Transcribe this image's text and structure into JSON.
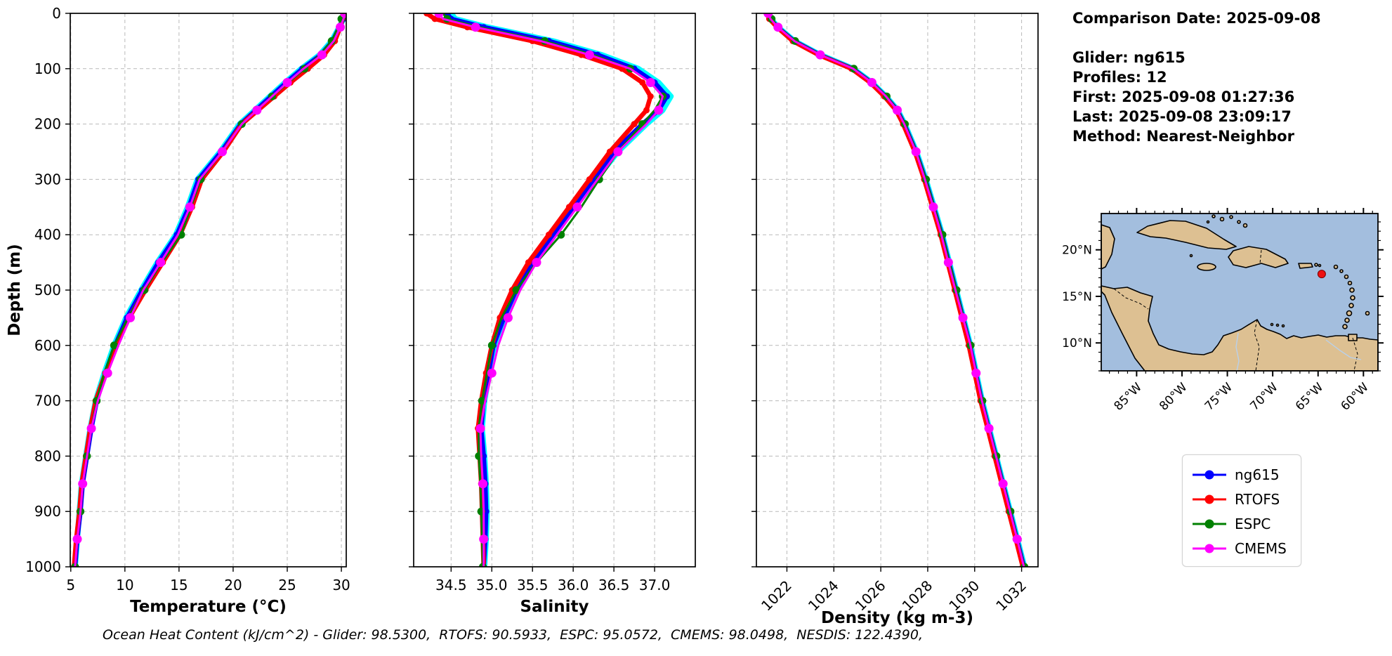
{
  "info_panel": {
    "comparison_date": "Comparison Date: 2025-09-08",
    "glider": "Glider: ng615",
    "profiles": "Profiles: 12",
    "first": "First: 2025-09-08 01:27:36",
    "last": "Last: 2025-09-08 23:09:17",
    "method": "Method: Nearest-Neighbor"
  },
  "footer_text": "Ocean Heat Content (kJ/cm^2) - Glider: 98.5300,  RTOFS: 90.5933,  ESPC: 95.0572,  CMEMS: 98.0498,  NESDIS: 122.4390,",
  "depth_axis": {
    "label": "Depth (m)",
    "ticks": [
      0,
      100,
      200,
      300,
      400,
      500,
      600,
      700,
      800,
      900,
      1000
    ],
    "lim": [
      0,
      1000
    ]
  },
  "legend": {
    "items": [
      {
        "label": "ng615",
        "color": "#0000ff"
      },
      {
        "label": "RTOFS",
        "color": "#ff0000"
      },
      {
        "label": "ESPC",
        "color": "#008000"
      },
      {
        "label": "CMEMS",
        "color": "#ff00ff"
      }
    ]
  },
  "chart_data": [
    {
      "type": "line",
      "xlabel": "Temperature (°C)",
      "ylabel": "Depth (m)",
      "xlim": [
        4.95,
        30.45
      ],
      "ylim": [
        0,
        1000
      ],
      "grid": true,
      "xticks": [
        5,
        10,
        15,
        20,
        25,
        30
      ],
      "xtick_labels": [
        "5",
        "10",
        "15",
        "20",
        "25",
        "30"
      ],
      "depths": [
        0,
        10,
        25,
        50,
        75,
        100,
        125,
        150,
        175,
        200,
        250,
        300,
        350,
        400,
        450,
        500,
        550,
        600,
        650,
        700,
        750,
        800,
        850,
        900,
        950,
        1000
      ],
      "series": [
        {
          "name": "ng615-raw-profiles",
          "color": "#00ffff",
          "line_width": 8,
          "marker_radius": 0,
          "marker_every": 0,
          "marker_offset": 0,
          "in_legend": false,
          "values": [
            30.3,
            30.2,
            29.8,
            29.1,
            28.0,
            26.3,
            24.8,
            23.4,
            22.0,
            20.6,
            18.8,
            16.7,
            15.8,
            14.7,
            13.0,
            11.5,
            10.1,
            9.0,
            8.1,
            7.3,
            6.8,
            6.4,
            6.0,
            5.8,
            5.6,
            5.4
          ]
        },
        {
          "name": "ng615",
          "color": "#0000ff",
          "line_width": 6.5,
          "marker_radius": 4.5,
          "marker_every": 1,
          "marker_offset": 0,
          "in_legend": true,
          "values": [
            30.3,
            30.2,
            29.8,
            29.2,
            28.1,
            26.4,
            24.9,
            23.5,
            22.1,
            20.7,
            18.9,
            16.8,
            15.9,
            14.8,
            13.1,
            11.6,
            10.2,
            9.1,
            8.2,
            7.4,
            6.9,
            6.5,
            6.1,
            5.9,
            5.6,
            5.4
          ]
        },
        {
          "name": "RTOFS",
          "color": "#ff0000",
          "line_width": 6.5,
          "marker_radius": 4.5,
          "marker_every": 1,
          "marker_offset": 0,
          "in_legend": true,
          "values": [
            30.2,
            30.1,
            29.9,
            29.4,
            28.4,
            26.9,
            25.3,
            23.8,
            22.3,
            20.8,
            19.1,
            17.1,
            16.2,
            15.1,
            13.5,
            11.9,
            10.4,
            9.2,
            8.2,
            7.3,
            6.8,
            6.4,
            6.0,
            5.8,
            5.5,
            5.3
          ]
        },
        {
          "name": "ESPC",
          "color": "#008000",
          "line_width": 3,
          "marker_radius": 5.5,
          "marker_every": 2,
          "marker_offset": 1,
          "in_legend": true,
          "values": [
            30.1,
            30.0,
            29.7,
            29.1,
            28.0,
            26.6,
            25.1,
            23.6,
            22.2,
            20.8,
            19.0,
            17.0,
            16.1,
            15.2,
            13.4,
            11.8,
            10.3,
            9.0,
            8.1,
            7.4,
            6.9,
            6.5,
            6.1,
            5.9,
            5.6,
            5.4
          ]
        },
        {
          "name": "CMEMS",
          "color": "#ff00ff",
          "line_width": 3,
          "marker_radius": 6.5,
          "marker_every": 2,
          "marker_offset": 0,
          "in_legend": true,
          "values": [
            30.3,
            30.2,
            29.9,
            29.3,
            28.2,
            26.5,
            25.0,
            23.6,
            22.2,
            20.8,
            19.0,
            16.9,
            16.0,
            14.9,
            13.3,
            11.7,
            10.5,
            9.4,
            8.4,
            7.5,
            6.9,
            6.5,
            6.1,
            5.9,
            5.6,
            5.4
          ]
        }
      ]
    },
    {
      "type": "line",
      "xlabel": "Salinity",
      "ylabel": "Depth (m)",
      "xlim": [
        34.04,
        37.5
      ],
      "ylim": [
        0,
        1000
      ],
      "grid": true,
      "xticks": [
        34.5,
        35.0,
        35.5,
        36.0,
        36.5,
        37.0
      ],
      "xtick_labels": [
        "34.5",
        "35.0",
        "35.5",
        "36.0",
        "36.5",
        "37.0"
      ],
      "depths": [
        0,
        10,
        25,
        50,
        75,
        100,
        125,
        150,
        175,
        200,
        250,
        300,
        350,
        400,
        450,
        500,
        550,
        600,
        650,
        700,
        750,
        800,
        850,
        900,
        950,
        1000
      ],
      "series": [
        {
          "name": "ng615-raw-profiles",
          "color": "#00ffff",
          "line_width": 8,
          "marker_radius": 0,
          "marker_every": 0,
          "marker_offset": 0,
          "in_legend": false,
          "values": [
            34.5,
            34.55,
            34.95,
            35.75,
            36.35,
            36.8,
            37.05,
            37.2,
            37.1,
            36.9,
            36.55,
            36.28,
            36.02,
            35.77,
            35.52,
            35.32,
            35.17,
            35.04,
            34.97,
            34.91,
            34.88,
            34.91,
            34.93,
            34.94,
            34.93,
            34.91
          ]
        },
        {
          "name": "ng615",
          "color": "#0000ff",
          "line_width": 6.5,
          "marker_radius": 4.5,
          "marker_every": 1,
          "marker_offset": 0,
          "in_legend": true,
          "values": [
            34.45,
            34.5,
            34.9,
            35.7,
            36.3,
            36.75,
            37.0,
            37.15,
            37.05,
            36.85,
            36.5,
            36.25,
            36.0,
            35.75,
            35.5,
            35.3,
            35.15,
            35.02,
            34.96,
            34.9,
            34.87,
            34.9,
            34.92,
            34.93,
            34.92,
            34.9
          ]
        },
        {
          "name": "RTOFS",
          "color": "#ff0000",
          "line_width": 6.5,
          "marker_radius": 4.5,
          "marker_every": 1,
          "marker_offset": 0,
          "in_legend": true,
          "values": [
            34.2,
            34.3,
            34.7,
            35.5,
            36.1,
            36.6,
            36.85,
            36.95,
            36.9,
            36.75,
            36.45,
            36.2,
            35.95,
            35.7,
            35.45,
            35.25,
            35.1,
            35.0,
            34.93,
            34.87,
            34.83,
            34.85,
            34.87,
            34.88,
            34.89,
            34.9
          ]
        },
        {
          "name": "ESPC",
          "color": "#008000",
          "line_width": 3,
          "marker_radius": 5.5,
          "marker_every": 2,
          "marker_offset": 1,
          "in_legend": true,
          "values": [
            34.4,
            34.45,
            34.85,
            35.65,
            36.25,
            36.7,
            36.95,
            37.1,
            37.0,
            36.85,
            36.55,
            36.32,
            36.1,
            35.85,
            35.55,
            35.3,
            35.12,
            35.0,
            34.94,
            34.88,
            34.84,
            34.84,
            34.86,
            34.87,
            34.88,
            34.89
          ]
        },
        {
          "name": "CMEMS",
          "color": "#ff00ff",
          "line_width": 3,
          "marker_radius": 6.5,
          "marker_every": 2,
          "marker_offset": 0,
          "in_legend": true,
          "values": [
            34.35,
            34.4,
            34.8,
            35.6,
            36.2,
            36.7,
            36.95,
            37.1,
            37.05,
            36.9,
            36.55,
            36.3,
            36.05,
            35.8,
            35.55,
            35.35,
            35.2,
            35.08,
            35.0,
            34.92,
            34.86,
            34.87,
            34.89,
            34.9,
            34.9,
            34.9
          ]
        }
      ]
    },
    {
      "type": "line",
      "xlabel": "Density (kg m-3)",
      "ylabel": "Depth (m)",
      "xlim": [
        1020.7,
        1032.7
      ],
      "ylim": [
        0,
        1000
      ],
      "grid": true,
      "xticks": [
        1022,
        1024,
        1026,
        1028,
        1030,
        1032
      ],
      "xtick_labels": [
        "1022",
        "1024",
        "1026",
        "1028",
        "1030",
        "1032"
      ],
      "xtick_rotation": -45,
      "depths": [
        0,
        10,
        25,
        50,
        75,
        100,
        125,
        150,
        175,
        200,
        250,
        300,
        350,
        400,
        450,
        500,
        550,
        600,
        650,
        700,
        750,
        800,
        850,
        900,
        950,
        1000
      ],
      "series": [
        {
          "name": "ng615-raw-profiles",
          "color": "#00ffff",
          "line_width": 8,
          "marker_radius": 0,
          "marker_every": 0,
          "marker_offset": 0,
          "in_legend": false,
          "values": [
            1021.22,
            1021.32,
            1021.62,
            1022.32,
            1023.42,
            1024.82,
            1025.62,
            1026.22,
            1026.72,
            1027.02,
            1027.52,
            1027.92,
            1028.27,
            1028.62,
            1028.92,
            1029.22,
            1029.52,
            1029.82,
            1030.07,
            1030.32,
            1030.62,
            1030.92,
            1031.22,
            1031.52,
            1031.82,
            1032.12
          ]
        },
        {
          "name": "ng615",
          "color": "#0000ff",
          "line_width": 6.5,
          "marker_radius": 4.5,
          "marker_every": 1,
          "marker_offset": 0,
          "in_legend": true,
          "values": [
            1021.2,
            1021.3,
            1021.6,
            1022.3,
            1023.4,
            1024.8,
            1025.6,
            1026.2,
            1026.7,
            1027.0,
            1027.5,
            1027.9,
            1028.25,
            1028.6,
            1028.9,
            1029.2,
            1029.5,
            1029.8,
            1030.05,
            1030.3,
            1030.6,
            1030.9,
            1031.2,
            1031.5,
            1031.8,
            1032.1
          ]
        },
        {
          "name": "RTOFS",
          "color": "#ff0000",
          "line_width": 6.5,
          "marker_radius": 4.5,
          "marker_every": 1,
          "marker_offset": 0,
          "in_legend": true,
          "values": [
            1021.15,
            1021.25,
            1021.58,
            1022.25,
            1023.35,
            1024.75,
            1025.55,
            1026.15,
            1026.65,
            1026.95,
            1027.45,
            1027.85,
            1028.2,
            1028.55,
            1028.85,
            1029.15,
            1029.45,
            1029.75,
            1030.0,
            1030.25,
            1030.55,
            1030.85,
            1031.15,
            1031.45,
            1031.75,
            1032.05
          ]
        },
        {
          "name": "ESPC",
          "color": "#008000",
          "line_width": 3,
          "marker_radius": 5.5,
          "marker_every": 2,
          "marker_offset": 1,
          "in_legend": true,
          "values": [
            1021.25,
            1021.35,
            1021.65,
            1022.35,
            1023.45,
            1024.85,
            1025.65,
            1026.25,
            1026.73,
            1027.03,
            1027.53,
            1027.93,
            1028.28,
            1028.63,
            1028.93,
            1029.23,
            1029.53,
            1029.83,
            1030.08,
            1030.33,
            1030.63,
            1030.93,
            1031.23,
            1031.53,
            1031.83,
            1032.12
          ]
        },
        {
          "name": "CMEMS",
          "color": "#ff00ff",
          "line_width": 3,
          "marker_radius": 6.5,
          "marker_every": 2,
          "marker_offset": 0,
          "in_legend": true,
          "values": [
            1021.2,
            1021.3,
            1021.62,
            1022.32,
            1023.42,
            1024.82,
            1025.62,
            1026.22,
            1026.7,
            1027.0,
            1027.5,
            1027.88,
            1028.24,
            1028.58,
            1028.88,
            1029.18,
            1029.5,
            1029.82,
            1030.06,
            1030.31,
            1030.61,
            1030.91,
            1031.21,
            1031.51,
            1031.81,
            1032.1
          ]
        }
      ]
    }
  ],
  "map": {
    "extent": {
      "lon_min": -88.9,
      "lon_max": -58.4,
      "lat_min": 7.0,
      "lat_max": 23.9
    },
    "lat_ticks": [
      {
        "label": "20°N",
        "lat": 20
      },
      {
        "label": "15°N",
        "lat": 15
      },
      {
        "label": "10°N",
        "lat": 10
      }
    ],
    "lon_ticks": [
      {
        "label": "85°W",
        "lon": -85
      },
      {
        "label": "80°W",
        "lon": -80
      },
      {
        "label": "75°W",
        "lon": -75
      },
      {
        "label": "70°W",
        "lon": -70
      },
      {
        "label": "65°W",
        "lon": -65
      },
      {
        "label": "60°W",
        "lon": -60
      }
    ],
    "marker": {
      "lat": 17.4,
      "lon": -64.6,
      "color": "#ee1111"
    },
    "ocean_color": "#a3bede",
    "land_color": "#ddc092"
  }
}
